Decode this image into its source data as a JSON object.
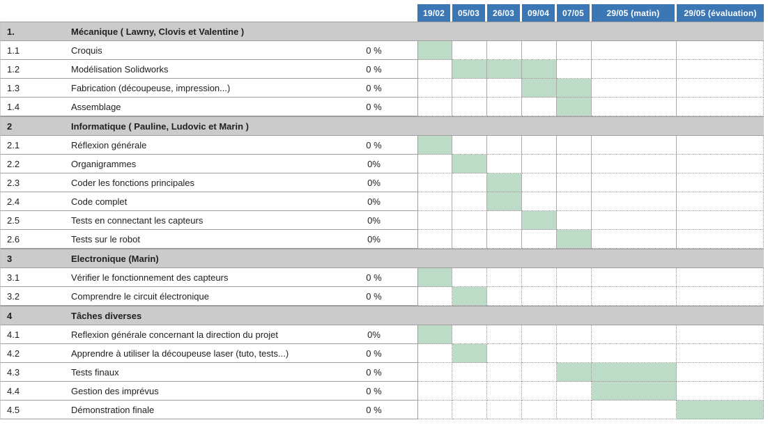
{
  "colors": {
    "header_bg": "#3b77b5",
    "header_text": "#ffffff",
    "section_bg": "#cbcbcb",
    "bar_fill": "#bddcc8",
    "grid_line": "#9e9e9e",
    "text": "#212121"
  },
  "columns": [
    "19/02",
    "05/03",
    "26/03",
    "09/04",
    "07/05",
    "29/05 (matin)",
    "29/05 (évaluation)"
  ],
  "sections": [
    {
      "number": "1.",
      "title": "Mécanique ( Lawny, Clovis et Valentine )",
      "tasks": [
        {
          "number": "1.1",
          "label": "Croquis",
          "progress": "0 %",
          "bars": [
            1
          ]
        },
        {
          "number": "1.2",
          "label": "Modélisation Solidworks",
          "progress": "0 %",
          "bars": [
            2,
            3,
            4
          ]
        },
        {
          "number": "1.3",
          "label": "Fabrication (découpeuse, impression...)",
          "progress": "0 %",
          "bars": [
            4,
            5
          ]
        },
        {
          "number": "1.4",
          "label": "Assemblage",
          "progress": "0 %",
          "bars": [
            5
          ]
        }
      ]
    },
    {
      "number": "2",
      "title": "Informatique ( Pauline, Ludovic et Marin )",
      "tasks": [
        {
          "number": "2.1",
          "label": "Réflexion générale",
          "progress": "0 %",
          "bars": [
            1
          ]
        },
        {
          "number": "2.2",
          "label": "Organigrammes",
          "progress": "0%",
          "bars": [
            2
          ]
        },
        {
          "number": "2.3",
          "label": "Coder les fonctions principales",
          "progress": "0%",
          "bars": [
            3
          ]
        },
        {
          "number": "2.4",
          "label": "Code complet",
          "progress": "0%",
          "bars": [
            3
          ]
        },
        {
          "number": "2.5",
          "label": "Tests en connectant les capteurs",
          "progress": "0%",
          "bars": [
            4
          ]
        },
        {
          "number": "2.6",
          "label": "Tests sur le robot",
          "progress": "0%",
          "bars": [
            5
          ]
        }
      ]
    },
    {
      "number": "3",
      "title": "Electronique (Marin)",
      "tasks": [
        {
          "number": "3.1",
          "label": "Vérifier le fonctionnement des capteurs",
          "progress": "0 %",
          "bars": [
            1
          ]
        },
        {
          "number": "3.2",
          "label": "Comprendre le circuit électronique",
          "progress": "0 %",
          "bars": [
            2
          ]
        }
      ]
    },
    {
      "number": "4",
      "title": "Tâches diverses",
      "tasks": [
        {
          "number": "4.1",
          "label": "Reflexion générale concernant la direction du projet",
          "progress": "0%",
          "bars": [
            1
          ]
        },
        {
          "number": "4.2",
          "label": "Apprendre à utiliser la découpeuse laser (tuto, tests...)",
          "progress": "0 %",
          "bars": [
            2
          ]
        },
        {
          "number": "4.3",
          "label": "Tests finaux",
          "progress": "0 %",
          "bars": [
            5,
            6
          ]
        },
        {
          "number": "4.4",
          "label": "Gestion des imprévus",
          "progress": "0 %",
          "bars": [
            6
          ]
        },
        {
          "number": "4.5",
          "label": "Démonstration finale",
          "progress": "0 %",
          "bars": [
            7
          ]
        }
      ]
    }
  ],
  "chart_data": {
    "type": "table",
    "subtype": "gantt",
    "title": "",
    "columns": [
      "19/02",
      "05/03",
      "26/03",
      "09/04",
      "07/05",
      "29/05 (matin)",
      "29/05 (évaluation)"
    ],
    "rows": [
      {
        "id": "1.",
        "task": "Mécanique ( Lawny, Clovis et Valentine )",
        "kind": "section"
      },
      {
        "id": "1.1",
        "task": "Croquis",
        "progress": "0 %",
        "scheduled": [
          "19/02"
        ]
      },
      {
        "id": "1.2",
        "task": "Modélisation Solidworks",
        "progress": "0 %",
        "scheduled": [
          "05/03",
          "26/03",
          "09/04"
        ]
      },
      {
        "id": "1.3",
        "task": "Fabrication (découpeuse, impression...)",
        "progress": "0 %",
        "scheduled": [
          "09/04",
          "07/05"
        ]
      },
      {
        "id": "1.4",
        "task": "Assemblage",
        "progress": "0 %",
        "scheduled": [
          "07/05"
        ]
      },
      {
        "id": "2",
        "task": "Informatique ( Pauline, Ludovic et Marin )",
        "kind": "section"
      },
      {
        "id": "2.1",
        "task": "Réflexion générale",
        "progress": "0 %",
        "scheduled": [
          "19/02"
        ]
      },
      {
        "id": "2.2",
        "task": "Organigrammes",
        "progress": "0%",
        "scheduled": [
          "05/03"
        ]
      },
      {
        "id": "2.3",
        "task": "Coder les fonctions principales",
        "progress": "0%",
        "scheduled": [
          "26/03"
        ]
      },
      {
        "id": "2.4",
        "task": "Code complet",
        "progress": "0%",
        "scheduled": [
          "26/03"
        ]
      },
      {
        "id": "2.5",
        "task": "Tests en connectant les capteurs",
        "progress": "0%",
        "scheduled": [
          "09/04"
        ]
      },
      {
        "id": "2.6",
        "task": "Tests sur le robot",
        "progress": "0%",
        "scheduled": [
          "07/05"
        ]
      },
      {
        "id": "3",
        "task": "Electronique (Marin)",
        "kind": "section"
      },
      {
        "id": "3.1",
        "task": "Vérifier le fonctionnement des capteurs",
        "progress": "0 %",
        "scheduled": [
          "19/02"
        ]
      },
      {
        "id": "3.2",
        "task": "Comprendre le circuit électronique",
        "progress": "0 %",
        "scheduled": [
          "05/03"
        ]
      },
      {
        "id": "4",
        "task": "Tâches diverses",
        "kind": "section"
      },
      {
        "id": "4.1",
        "task": "Reflexion générale concernant la direction du projet",
        "progress": "0%",
        "scheduled": [
          "19/02"
        ]
      },
      {
        "id": "4.2",
        "task": "Apprendre à utiliser la découpeuse laser (tuto, tests...)",
        "progress": "0 %",
        "scheduled": [
          "05/03"
        ]
      },
      {
        "id": "4.3",
        "task": "Tests finaux",
        "progress": "0 %",
        "scheduled": [
          "07/05",
          "29/05 (matin)"
        ]
      },
      {
        "id": "4.4",
        "task": "Gestion des imprévus",
        "progress": "0 %",
        "scheduled": [
          "29/05 (matin)"
        ]
      },
      {
        "id": "4.5",
        "task": "Démonstration finale",
        "progress": "0 %",
        "scheduled": [
          "29/05 (évaluation)"
        ]
      }
    ]
  }
}
